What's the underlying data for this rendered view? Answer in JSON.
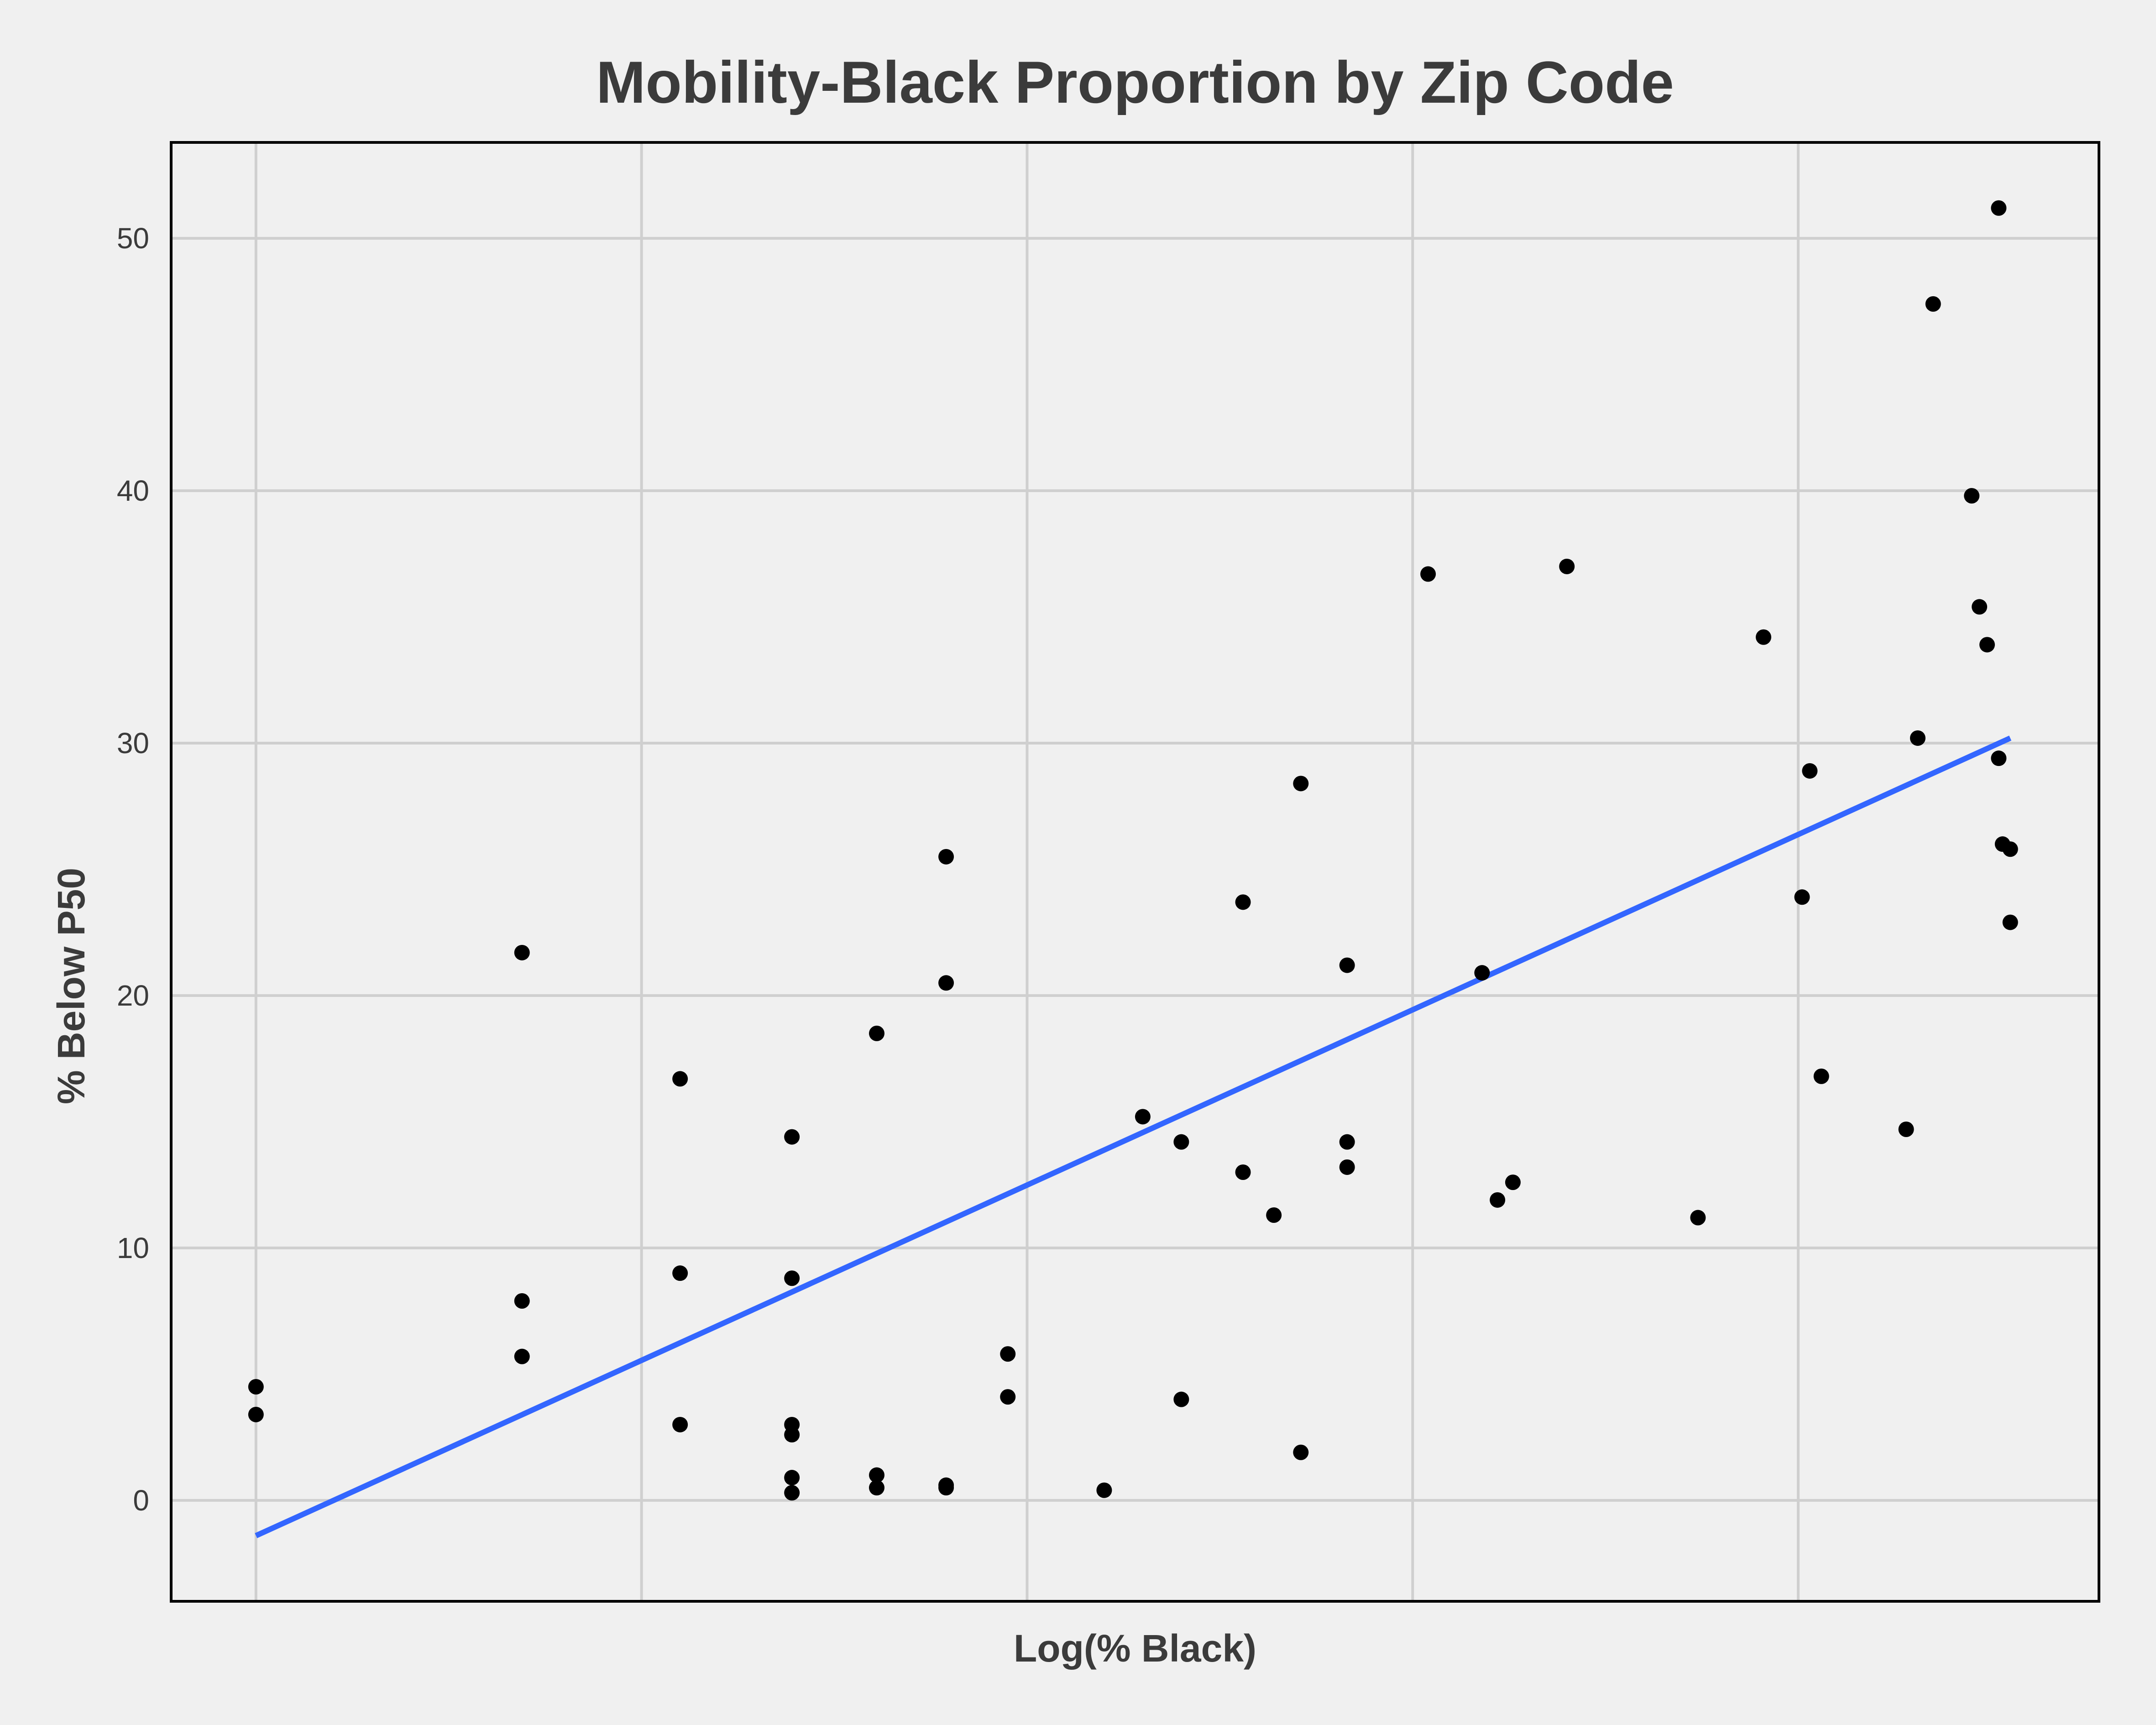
{
  "chart_data": {
    "type": "scatter",
    "title": "Mobility-Black Proportion by Zip Code",
    "xlabel": "Log(% Black)",
    "ylabel": "% Below P50",
    "xlim": [
      -0.22,
      4.78
    ],
    "ylim": [
      -4,
      53.8
    ],
    "x_gridlines": [
      0,
      1,
      2,
      3,
      4
    ],
    "y_ticks": [
      0,
      10,
      20,
      30,
      40,
      50
    ],
    "grid": true,
    "colors": {
      "points": "#000000",
      "trend": "#3366ff",
      "background": "#f0f0f0",
      "grid": "#cfcfcf"
    },
    "trend_line": {
      "x": [
        0.0,
        4.55
      ],
      "y": [
        -1.4,
        30.2
      ]
    },
    "points": [
      {
        "x": 0.0,
        "y": 4.5
      },
      {
        "x": 0.0,
        "y": 3.4
      },
      {
        "x": 0.69,
        "y": 21.7
      },
      {
        "x": 0.69,
        "y": 7.9
      },
      {
        "x": 0.69,
        "y": 5.7
      },
      {
        "x": 1.1,
        "y": 16.7
      },
      {
        "x": 1.1,
        "y": 9.0
      },
      {
        "x": 1.1,
        "y": 3.0
      },
      {
        "x": 1.39,
        "y": 14.4
      },
      {
        "x": 1.39,
        "y": 8.8
      },
      {
        "x": 1.39,
        "y": 3.0
      },
      {
        "x": 1.39,
        "y": 2.6
      },
      {
        "x": 1.39,
        "y": 0.9
      },
      {
        "x": 1.39,
        "y": 0.3
      },
      {
        "x": 1.61,
        "y": 18.5
      },
      {
        "x": 1.61,
        "y": 1.0
      },
      {
        "x": 1.61,
        "y": 0.5
      },
      {
        "x": 1.79,
        "y": 25.5
      },
      {
        "x": 1.79,
        "y": 20.5
      },
      {
        "x": 1.79,
        "y": 0.6
      },
      {
        "x": 1.79,
        "y": 0.5
      },
      {
        "x": 1.95,
        "y": 5.8
      },
      {
        "x": 1.95,
        "y": 4.1
      },
      {
        "x": 2.2,
        "y": 0.4
      },
      {
        "x": 2.3,
        "y": 15.2
      },
      {
        "x": 2.4,
        "y": 14.2
      },
      {
        "x": 2.4,
        "y": 4.0
      },
      {
        "x": 2.56,
        "y": 23.7
      },
      {
        "x": 2.56,
        "y": 13.0
      },
      {
        "x": 2.64,
        "y": 11.3
      },
      {
        "x": 2.71,
        "y": 28.4
      },
      {
        "x": 2.71,
        "y": 1.9
      },
      {
        "x": 2.83,
        "y": 21.2
      },
      {
        "x": 2.83,
        "y": 14.2
      },
      {
        "x": 2.83,
        "y": 13.2
      },
      {
        "x": 3.04,
        "y": 36.7
      },
      {
        "x": 3.18,
        "y": 20.9
      },
      {
        "x": 3.22,
        "y": 11.9
      },
      {
        "x": 3.26,
        "y": 12.6
      },
      {
        "x": 3.4,
        "y": 37.0
      },
      {
        "x": 3.74,
        "y": 11.2
      },
      {
        "x": 3.91,
        "y": 34.2
      },
      {
        "x": 4.01,
        "y": 23.9
      },
      {
        "x": 4.03,
        "y": 28.9
      },
      {
        "x": 4.06,
        "y": 16.8
      },
      {
        "x": 4.28,
        "y": 14.7
      },
      {
        "x": 4.31,
        "y": 30.2
      },
      {
        "x": 4.35,
        "y": 47.4
      },
      {
        "x": 4.45,
        "y": 39.8
      },
      {
        "x": 4.47,
        "y": 35.4
      },
      {
        "x": 4.49,
        "y": 33.9
      },
      {
        "x": 4.52,
        "y": 51.2
      },
      {
        "x": 4.52,
        "y": 29.4
      },
      {
        "x": 4.53,
        "y": 26.0
      },
      {
        "x": 4.55,
        "y": 25.8
      },
      {
        "x": 4.55,
        "y": 22.9
      }
    ]
  }
}
